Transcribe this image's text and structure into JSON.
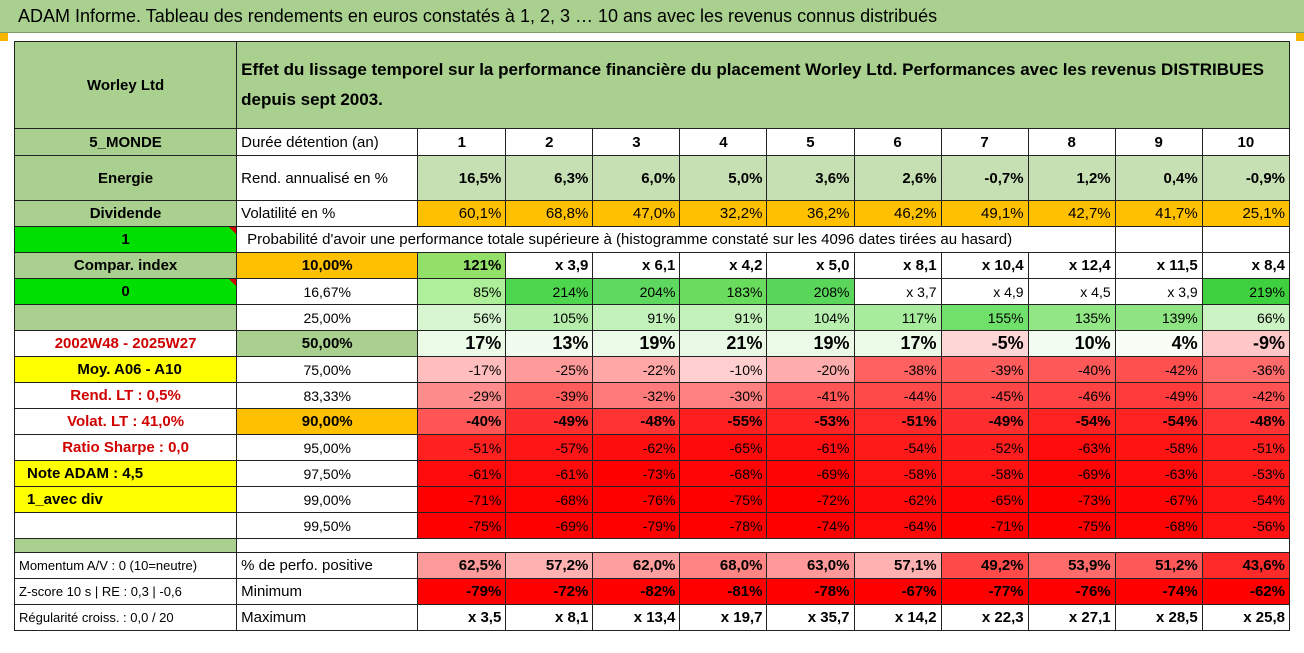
{
  "title": "ADAM Informe. Tableau des rendements en euros constatés à 1, 2, 3 … 10 ans avec les revenus connus distribués",
  "company": "Worley Ltd",
  "description": "Effet du lissage temporel sur la performance financière du placement Worley Ltd. Performances avec les revenus DISTRIBUES depuis sept 2003.",
  "left_labels": {
    "region": "5_MONDE",
    "sector": "Energie",
    "dividend": "Dividende",
    "one": "1",
    "compar": "Compar. index",
    "zero": "0",
    "period": "2002W48 - 2025W27",
    "moy": "Moy. A06 - A10",
    "rend_lt": "Rend. LT :   0,5%",
    "volat_lt": "Volat. LT :   41,0%",
    "sharpe": "Ratio Sharpe :   0,0",
    "note": "Note ADAM : 4,5",
    "avec_div": "1_avec div",
    "momentum": "Momentum A/V : 0 (10=neutre)",
    "zscore": "Z-score 10 s | RE : 0,3 | -0,6",
    "regularite": "Régularité croiss. : 0,0 / 20"
  },
  "duration_label": "Durée détention (an)",
  "durations": [
    "1",
    "2",
    "3",
    "4",
    "5",
    "6",
    "7",
    "8",
    "9",
    "10"
  ],
  "rend_label": "Rend. annualisé en %",
  "rend": [
    "16,5%",
    "6,3%",
    "6,0%",
    "5,0%",
    "3,6%",
    "2,6%",
    "-0,7%",
    "1,2%",
    "0,4%",
    "-0,9%"
  ],
  "vol_label": "Volatilité en %",
  "vol": [
    "60,1%",
    "68,8%",
    "47,0%",
    "32,2%",
    "36,2%",
    "46,2%",
    "49,1%",
    "42,7%",
    "41,7%",
    "25,1%"
  ],
  "prob_label": "Probabilité d'avoir une performance totale supérieure à (histogramme constaté sur les 4096 dates tirées au hasard)",
  "quantiles": [
    {
      "p": "10,00%",
      "v": [
        "121%",
        "x 3,9",
        "x 6,1",
        "x 4,2",
        "x 5,0",
        "x 8,1",
        "x 10,4",
        "x 12,4",
        "x 11,5",
        "x 8,4"
      ]
    },
    {
      "p": "16,67%",
      "v": [
        "85%",
        "214%",
        "204%",
        "183%",
        "208%",
        "x 3,7",
        "x 4,9",
        "x 4,5",
        "x 3,9",
        "219%"
      ]
    },
    {
      "p": "25,00%",
      "v": [
        "56%",
        "105%",
        "91%",
        "91%",
        "104%",
        "117%",
        "155%",
        "135%",
        "139%",
        "66%"
      ]
    },
    {
      "p": "50,00%",
      "v": [
        "17%",
        "13%",
        "19%",
        "21%",
        "19%",
        "17%",
        "-5%",
        "10%",
        "4%",
        "-9%"
      ]
    },
    {
      "p": "75,00%",
      "v": [
        "-17%",
        "-25%",
        "-22%",
        "-10%",
        "-20%",
        "-38%",
        "-39%",
        "-40%",
        "-42%",
        "-36%"
      ]
    },
    {
      "p": "83,33%",
      "v": [
        "-29%",
        "-39%",
        "-32%",
        "-30%",
        "-41%",
        "-44%",
        "-45%",
        "-46%",
        "-49%",
        "-42%"
      ]
    },
    {
      "p": "90,00%",
      "v": [
        "-40%",
        "-49%",
        "-48%",
        "-55%",
        "-53%",
        "-51%",
        "-49%",
        "-54%",
        "-54%",
        "-48%"
      ]
    },
    {
      "p": "95,00%",
      "v": [
        "-51%",
        "-57%",
        "-62%",
        "-65%",
        "-61%",
        "-54%",
        "-52%",
        "-63%",
        "-58%",
        "-51%"
      ]
    },
    {
      "p": "97,50%",
      "v": [
        "-61%",
        "-61%",
        "-73%",
        "-68%",
        "-69%",
        "-58%",
        "-58%",
        "-69%",
        "-63%",
        "-53%"
      ]
    },
    {
      "p": "99,00%",
      "v": [
        "-71%",
        "-68%",
        "-76%",
        "-75%",
        "-72%",
        "-62%",
        "-65%",
        "-73%",
        "-67%",
        "-54%"
      ]
    },
    {
      "p": "99,50%",
      "v": [
        "-75%",
        "-69%",
        "-79%",
        "-78%",
        "-74%",
        "-64%",
        "-71%",
        "-75%",
        "-68%",
        "-56%"
      ]
    }
  ],
  "pos_label": "% de perfo. positive",
  "pos": [
    "62,5%",
    "57,2%",
    "62,0%",
    "68,0%",
    "63,0%",
    "57,1%",
    "49,2%",
    "53,9%",
    "51,2%",
    "43,6%"
  ],
  "min_label": "Minimum",
  "min": [
    "-79%",
    "-72%",
    "-82%",
    "-81%",
    "-78%",
    "-67%",
    "-77%",
    "-76%",
    "-74%",
    "-62%"
  ],
  "max_label": "Maximum",
  "max": [
    "x 3,5",
    "x 8,1",
    "x 13,4",
    "x 19,7",
    "x 35,7",
    "x 14,2",
    "x 22,3",
    "x 27,1",
    "x 28,5",
    "x 25,8"
  ],
  "colors": {
    "header_green": "#a9d08e",
    "rend_green": "#c6e0b4",
    "vol_orange": "#ffc000",
    "accent_red": "#ff0000",
    "bright_green": "#00e000",
    "yellow": "#ffff00"
  },
  "cell_colors": {
    "rend": [
      "#c6e0b4",
      "#c6e0b4",
      "#c6e0b4",
      "#c6e0b4",
      "#c6e0b4",
      "#c6e0b4",
      "#c6e0b4",
      "#c6e0b4",
      "#c6e0b4",
      "#c6e0b4"
    ],
    "q0": [
      "#92e06a",
      "#ffffff",
      "#ffffff",
      "#ffffff",
      "#ffffff",
      "#ffffff",
      "#ffffff",
      "#ffffff",
      "#ffffff",
      "#ffffff"
    ],
    "q1": [
      "#aef09a",
      "#4fd64f",
      "#5ed85e",
      "#69db5d",
      "#5ad65a",
      "#ffffff",
      "#ffffff",
      "#ffffff",
      "#ffffff",
      "#3fd03f"
    ],
    "q2": [
      "#d7f5d0",
      "#b5eeaa",
      "#c2f1b9",
      "#c2f1b9",
      "#b9efae",
      "#a6ec9c",
      "#6fe06a",
      "#92e685",
      "#8ee483",
      "#ccf3c3"
    ],
    "q3": [
      "#ecfae8",
      "#f1fbee",
      "#ebfae7",
      "#e9f9e5",
      "#ebfae7",
      "#ecfae8",
      "#ffd6d6",
      "#f3fcf0",
      "#f8fdf6",
      "#ffc7c7"
    ],
    "q4": [
      "#ffbdbd",
      "#ff9a9a",
      "#ffa6a6",
      "#ffcfcf",
      "#ffacac",
      "#ff6060",
      "#ff5c5c",
      "#ff5858",
      "#ff5050",
      "#ff6a6a"
    ],
    "q5": [
      "#ff8c8c",
      "#ff5c5c",
      "#ff7a7a",
      "#ff8080",
      "#ff5555",
      "#ff4a4a",
      "#ff4646",
      "#ff4242",
      "#ff3b3b",
      "#ff5252"
    ],
    "q6": [
      "#ff5555",
      "#ff2e2e",
      "#ff3333",
      "#ff1f1f",
      "#ff2323",
      "#ff2828",
      "#ff2e2e",
      "#ff2222",
      "#ff2222",
      "#ff3333"
    ],
    "q7": [
      "#ff2020",
      "#ff1515",
      "#ff0e0e",
      "#ff0a0a",
      "#ff1010",
      "#ff1a1a",
      "#ff1d1d",
      "#ff0c0c",
      "#ff1313",
      "#ff2020"
    ],
    "q8": [
      "#ff0b0b",
      "#ff0b0b",
      "#ff0000",
      "#ff0505",
      "#ff0404",
      "#ff1212",
      "#ff1212",
      "#ff0404",
      "#ff0b0b",
      "#ff1a1a"
    ],
    "q9": [
      "#ff0000",
      "#ff0202",
      "#ff0000",
      "#ff0000",
      "#ff0000",
      "#ff0a0a",
      "#ff0606",
      "#ff0000",
      "#ff0505",
      "#ff1515"
    ],
    "q10": [
      "#ff0000",
      "#ff0000",
      "#ff0000",
      "#ff0000",
      "#ff0000",
      "#ff0808",
      "#ff0000",
      "#ff0000",
      "#ff0303",
      "#ff1212"
    ],
    "pos": [
      "#ff9a9a",
      "#ffb0b0",
      "#ff9e9e",
      "#ff8585",
      "#ff9898",
      "#ffb0b0",
      "#ff4a4a",
      "#ff6a6a",
      "#ff5858",
      "#ff2a2a"
    ],
    "min": [
      "#ff0000",
      "#ff0000",
      "#ff0000",
      "#ff0000",
      "#ff0000",
      "#ff0000",
      "#ff0000",
      "#ff0000",
      "#ff0000",
      "#ff0000"
    ]
  }
}
